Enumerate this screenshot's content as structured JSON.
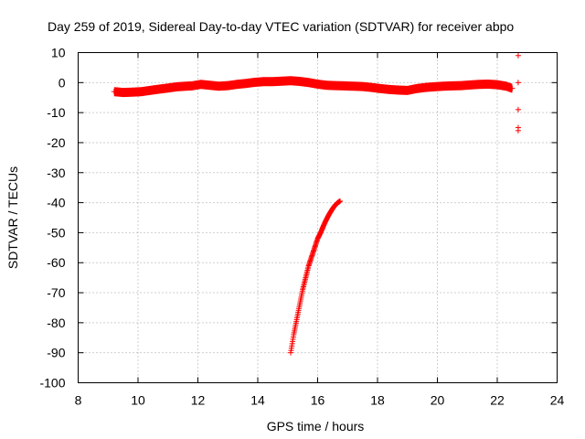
{
  "chart_data": {
    "type": "scatter",
    "title": "Day 259 of 2019, Sidereal Day-to-day VTEC variation (SDTVAR) for receiver abpo",
    "xlabel": "GPS time / hours",
    "ylabel": "SDTVAR / TECUs",
    "xlim": [
      8,
      24
    ],
    "ylim": [
      -100,
      10
    ],
    "xticks": [
      8,
      10,
      12,
      14,
      16,
      18,
      20,
      22,
      24
    ],
    "yticks": [
      10,
      0,
      -10,
      -20,
      -30,
      -40,
      -50,
      -60,
      -70,
      -80,
      -90,
      -100
    ],
    "grid": true,
    "marker": "+",
    "color": "#ff0000",
    "series": [
      {
        "style": "band",
        "points": [
          [
            9.2,
            -3.0
          ],
          [
            9.5,
            -3.3
          ],
          [
            9.8,
            -3.2
          ],
          [
            10.1,
            -3.0
          ],
          [
            10.4,
            -2.6
          ],
          [
            10.7,
            -2.2
          ],
          [
            11.0,
            -1.8
          ],
          [
            11.3,
            -1.4
          ],
          [
            11.6,
            -1.2
          ],
          [
            11.8,
            -1.1
          ],
          [
            12.1,
            -0.6
          ],
          [
            12.4,
            -0.9
          ],
          [
            12.7,
            -1.2
          ],
          [
            13.0,
            -1.0
          ],
          [
            13.3,
            -0.6
          ],
          [
            13.6,
            -0.3
          ],
          [
            13.9,
            0.1
          ],
          [
            14.2,
            0.3
          ],
          [
            14.5,
            0.3
          ],
          [
            14.8,
            0.5
          ],
          [
            15.1,
            0.6
          ],
          [
            15.4,
            0.4
          ],
          [
            15.7,
            0.0
          ],
          [
            16.0,
            -0.5
          ],
          [
            16.3,
            -0.9
          ],
          [
            16.6,
            -1.0
          ],
          [
            16.9,
            -1.1
          ],
          [
            17.2,
            -1.2
          ],
          [
            17.5,
            -1.3
          ],
          [
            17.8,
            -1.6
          ],
          [
            18.1,
            -2.0
          ],
          [
            18.4,
            -2.3
          ],
          [
            18.7,
            -2.5
          ],
          [
            19.0,
            -2.6
          ],
          [
            19.3,
            -2.0
          ],
          [
            19.6,
            -1.6
          ],
          [
            19.9,
            -1.4
          ],
          [
            20.2,
            -1.2
          ],
          [
            20.5,
            -1.1
          ],
          [
            20.8,
            -1.0
          ],
          [
            21.1,
            -0.8
          ],
          [
            21.4,
            -0.6
          ],
          [
            21.7,
            -0.5
          ],
          [
            22.0,
            -0.7
          ],
          [
            22.3,
            -1.2
          ],
          [
            22.5,
            -1.9
          ]
        ]
      },
      {
        "style": "scatter",
        "points": [
          [
            15.1,
            -90
          ],
          [
            15.15,
            -87
          ],
          [
            15.2,
            -84
          ],
          [
            15.25,
            -81.5
          ],
          [
            15.3,
            -79
          ],
          [
            15.35,
            -76.5
          ],
          [
            15.4,
            -74
          ],
          [
            15.45,
            -71.5
          ],
          [
            15.5,
            -69
          ],
          [
            15.55,
            -67
          ],
          [
            15.6,
            -65
          ],
          [
            15.65,
            -63
          ],
          [
            15.7,
            -61
          ],
          [
            15.75,
            -59.5
          ],
          [
            15.8,
            -58
          ],
          [
            15.85,
            -56.5
          ],
          [
            15.9,
            -55
          ],
          [
            15.95,
            -53.5
          ],
          [
            16.0,
            -52
          ],
          [
            16.05,
            -51
          ],
          [
            16.1,
            -50
          ],
          [
            16.15,
            -48.8
          ],
          [
            16.2,
            -47.6
          ],
          [
            16.25,
            -46.5
          ],
          [
            16.3,
            -45.5
          ],
          [
            16.35,
            -44.5
          ],
          [
            16.4,
            -43.6
          ],
          [
            16.45,
            -42.8
          ],
          [
            16.5,
            -42
          ],
          [
            16.55,
            -41.3
          ],
          [
            16.6,
            -40.7
          ],
          [
            16.65,
            -40.2
          ],
          [
            16.7,
            -39.8
          ],
          [
            16.75,
            -39.5
          ]
        ]
      },
      {
        "style": "scatter",
        "points": [
          [
            22.7,
            9
          ],
          [
            22.7,
            0
          ],
          [
            22.7,
            -9
          ],
          [
            22.7,
            -15
          ],
          [
            22.7,
            -16
          ]
        ]
      }
    ]
  }
}
